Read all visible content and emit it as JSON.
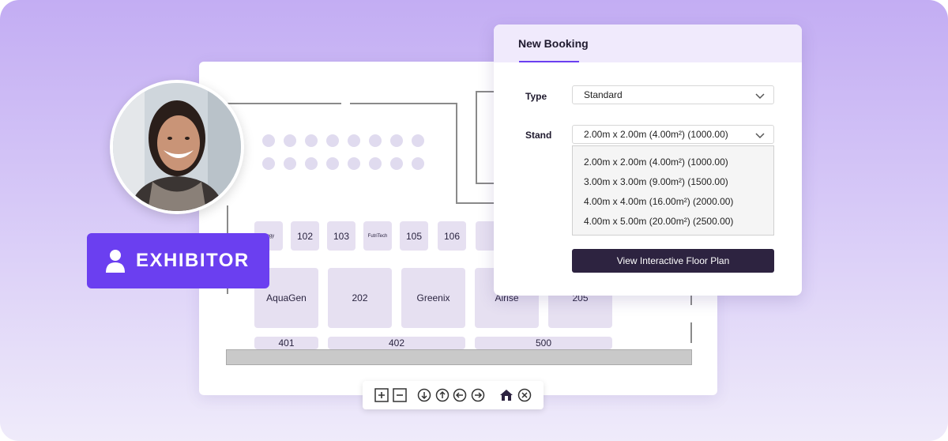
{
  "floor_plan": {
    "stands_row1": [
      "ology",
      "102",
      "103",
      "FutriTech",
      "105",
      "106"
    ],
    "stands_row2": [
      "AquaGen",
      "202",
      "Greenix",
      "Airise",
      "205"
    ],
    "stands_row3": [
      "401",
      "402",
      "500"
    ]
  },
  "toolbar": {
    "icons": [
      "zoom-in-icon",
      "zoom-out-icon",
      "pan-down-icon",
      "pan-up-icon",
      "pan-left-icon",
      "pan-right-icon",
      "home-icon",
      "close-icon"
    ]
  },
  "badge": {
    "label": "EXHIBITOR",
    "icon": "user-icon",
    "color": "#6b3ff0"
  },
  "booking": {
    "tab": "New Booking",
    "type_label": "Type",
    "type_value": "Standard",
    "stand_label": "Stand",
    "stand_value": "2.00m x 2.00m (4.00m²) (1000.00)",
    "options": [
      "2.00m x 2.00m (4.00m²) (1000.00)",
      "3.00m x 3.00m (9.00m²) (1500.00)",
      "4.00m x 4.00m (16.00m²) (2000.00)",
      "4.00m x 5.00m (20.00m²) (2500.00)"
    ],
    "cta": "View Interactive Floor Plan"
  },
  "colors": {
    "accent": "#6b3ff0",
    "stand_fill": "#e6e0f1",
    "button_dark": "#2d2340"
  }
}
